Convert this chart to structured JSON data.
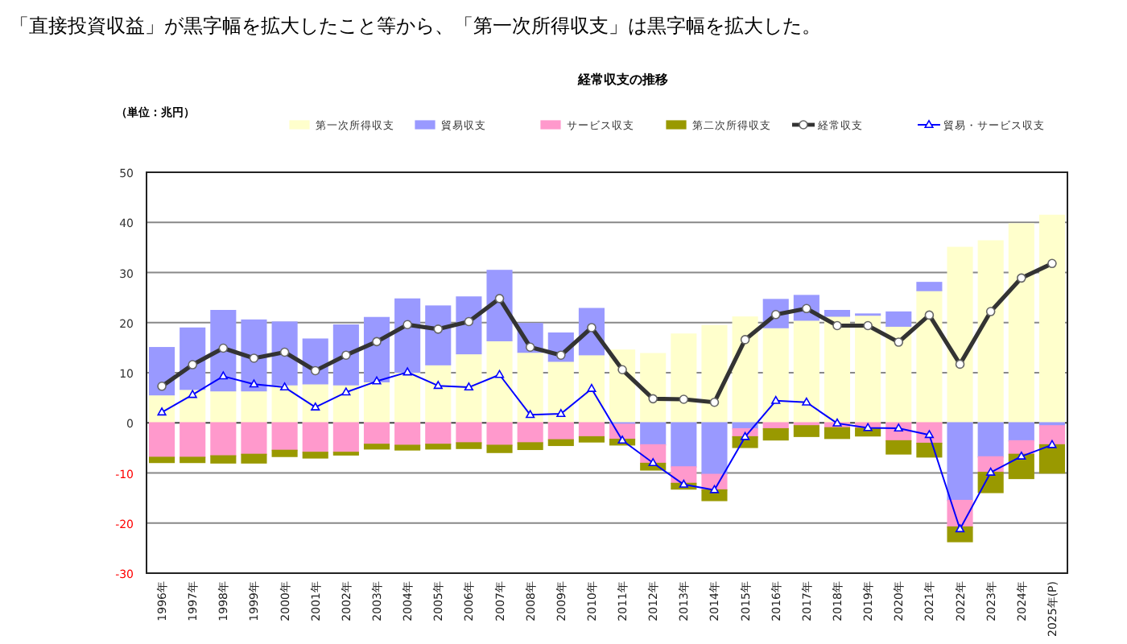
{
  "chart_data": {
    "type": "bar",
    "stacked": true,
    "title": "経常収支の推移",
    "annotations": [
      "「直接投資収益」が黒字幅を拡大したこと等から、「第一次所得収支」は黒字幅を拡大した。",
      "（単位：兆円）"
    ],
    "categories": [
      "1996年",
      "1997年",
      "1998年",
      "1999年",
      "2000年",
      "2001年",
      "2002年",
      "2003年",
      "2004年",
      "2005年",
      "2006年",
      "2007年",
      "2008年",
      "2009年",
      "2010年",
      "2011年",
      "2012年",
      "2013年",
      "2014年",
      "2015年",
      "2016年",
      "2017年",
      "2018年",
      "2019年",
      "2020年",
      "2021年",
      "2022年",
      "2023年",
      "2024年",
      "2025年(P)"
    ],
    "series": [
      {
        "name": "第一次所得収支",
        "color": "#ffffcc",
        "values": [
          5.6,
          6.7,
          6.4,
          6.4,
          7.6,
          7.8,
          7.6,
          8.2,
          10.1,
          11.6,
          13.8,
          16.4,
          14.1,
          12.3,
          13.6,
          14.5,
          13.8,
          17.7,
          19.4,
          21.1,
          19.0,
          20.5,
          21.3,
          21.5,
          19.3,
          26.4,
          35.0,
          36.3,
          39.7,
          41.4
        ]
      },
      {
        "name": "貿易収支",
        "color": "#9999ff",
        "values": [
          9.4,
          12.2,
          16.0,
          14.1,
          12.5,
          8.9,
          11.9,
          12.8,
          14.6,
          11.7,
          11.3,
          14.0,
          5.7,
          5.6,
          9.2,
          -0.3,
          -4.4,
          -8.8,
          -10.3,
          -1.2,
          5.6,
          4.9,
          1.1,
          0.2,
          2.8,
          1.6,
          -15.5,
          -6.8,
          -3.6,
          -0.6
        ]
      },
      {
        "name": "サービス収支",
        "color": "#ff99cc",
        "values": [
          -6.9,
          -6.9,
          -6.6,
          -6.3,
          -5.5,
          -5.9,
          -5.9,
          -4.3,
          -4.5,
          -4.3,
          -4.0,
          -4.5,
          -4.0,
          -3.4,
          -2.8,
          -3.0,
          -3.7,
          -3.3,
          -3.1,
          -1.6,
          -1.2,
          -0.6,
          -1.0,
          -1.1,
          -3.6,
          -4.1,
          -5.3,
          -3.1,
          -2.7,
          -3.8
        ]
      },
      {
        "name": "第二次所得収支",
        "color": "#999900",
        "values": [
          -1.0,
          -1.0,
          -1.4,
          -1.7,
          -1.2,
          -1.1,
          -0.5,
          -0.9,
          -0.9,
          -0.9,
          -1.1,
          -1.4,
          -1.3,
          -1.1,
          -1.0,
          -1.1,
          -1.3,
          -1.1,
          -2.1,
          -2.1,
          -2.2,
          -2.1,
          -2.1,
          -1.5,
          -2.6,
          -2.7,
          -2.9,
          -4.0,
          -4.8,
          -5.6
        ]
      },
      {
        "name": "経常収支",
        "type": "line",
        "color": "#333333",
        "marker": "circle",
        "values": [
          7.3,
          11.6,
          14.9,
          12.9,
          14.1,
          10.4,
          13.5,
          16.2,
          19.6,
          18.7,
          20.2,
          24.8,
          15.1,
          13.5,
          19.0,
          10.6,
          4.8,
          4.7,
          4.1,
          16.6,
          21.6,
          22.8,
          19.4,
          19.4,
          16.1,
          21.5,
          11.7,
          22.2,
          28.9,
          31.8
        ]
      },
      {
        "name": "貿易・サービス収支",
        "type": "line",
        "color": "#0000ff",
        "marker": "triangle",
        "values": [
          2.1,
          5.6,
          9.3,
          7.7,
          7.1,
          3.1,
          6.1,
          8.3,
          10.1,
          7.4,
          7.1,
          9.6,
          1.6,
          1.8,
          6.8,
          -3.5,
          -8.0,
          -12.3,
          -13.4,
          -2.8,
          4.4,
          4.1,
          -0.1,
          -1.0,
          -1.1,
          -2.4,
          -21.2,
          -9.9,
          -6.7,
          -4.4
        ]
      }
    ],
    "ylim": [
      -30,
      50
    ],
    "yticks": [
      -30,
      -20,
      -10,
      0,
      10,
      20,
      30,
      40,
      50
    ],
    "grid": "y",
    "legend": "top"
  }
}
